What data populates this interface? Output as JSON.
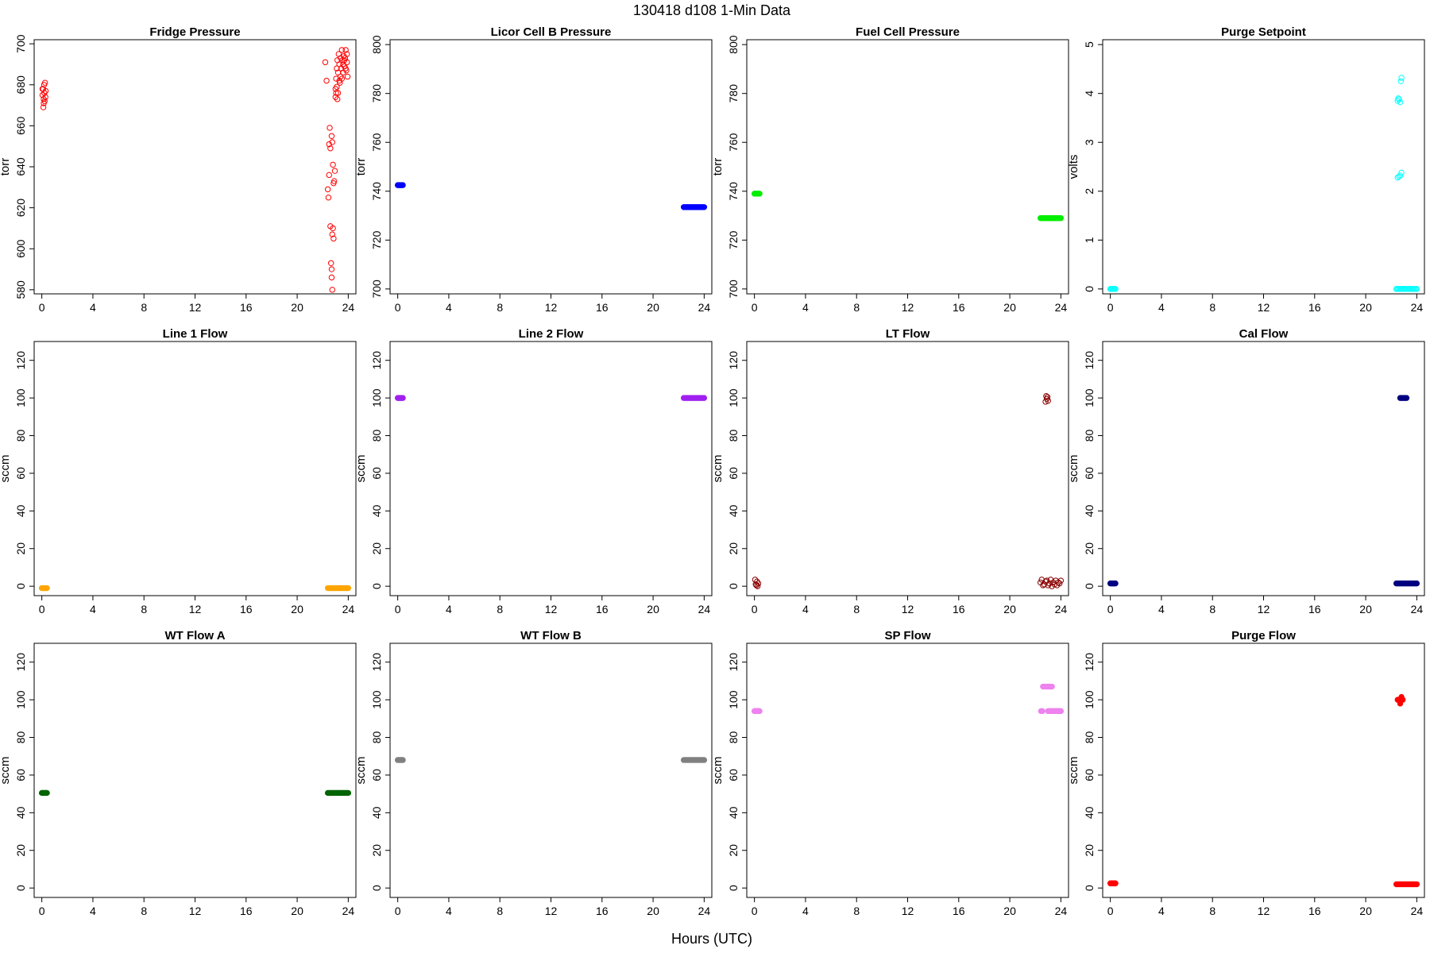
{
  "page_title": "130418   d108   1-Min Data",
  "x_axis_label": "Hours (UTC)",
  "chart_data": [
    {
      "type": "scatter",
      "title": "Fridge Pressure",
      "ylabel": "torr",
      "xlabel": "",
      "color": "#ff0000",
      "filled": false,
      "xlim": [
        0,
        24
      ],
      "ylim": [
        578,
        702
      ],
      "xticks": [
        0,
        4,
        8,
        12,
        16,
        20,
        24
      ],
      "yticks": [
        580,
        600,
        620,
        640,
        660,
        680,
        700
      ],
      "points": [
        [
          0.05,
          675
        ],
        [
          0.1,
          678
        ],
        [
          0.12,
          669
        ],
        [
          0.15,
          673
        ],
        [
          0.18,
          680
        ],
        [
          0.2,
          676
        ],
        [
          0.22,
          672
        ],
        [
          0.25,
          681
        ],
        [
          0.28,
          674
        ],
        [
          0.3,
          677
        ],
        [
          0.05,
          678
        ],
        [
          0.15,
          671
        ],
        [
          22.2,
          691
        ],
        [
          22.3,
          682
        ],
        [
          22.4,
          629
        ],
        [
          22.45,
          625
        ],
        [
          22.5,
          651
        ],
        [
          22.55,
          659
        ],
        [
          22.5,
          636
        ],
        [
          22.6,
          649
        ],
        [
          22.6,
          611
        ],
        [
          22.65,
          593
        ],
        [
          22.7,
          590
        ],
        [
          22.75,
          580
        ],
        [
          22.7,
          586
        ],
        [
          22.7,
          655
        ],
        [
          22.75,
          652
        ],
        [
          22.75,
          607
        ],
        [
          22.8,
          610
        ],
        [
          22.8,
          641
        ],
        [
          22.85,
          605
        ],
        [
          22.9,
          633
        ],
        [
          22.95,
          638
        ],
        [
          22.85,
          632
        ],
        [
          23.0,
          674
        ],
        [
          23.0,
          678
        ],
        [
          23.05,
          683
        ],
        [
          23.1,
          688
        ],
        [
          23.15,
          692
        ],
        [
          23.2,
          686
        ],
        [
          23.25,
          695
        ],
        [
          23.3,
          690
        ],
        [
          23.35,
          681
        ],
        [
          23.4,
          693
        ],
        [
          23.45,
          688
        ],
        [
          23.5,
          697
        ],
        [
          23.5,
          683
        ],
        [
          23.55,
          692
        ],
        [
          23.6,
          686
        ],
        [
          23.65,
          694
        ],
        [
          23.7,
          689
        ],
        [
          23.75,
          693
        ],
        [
          23.8,
          697
        ],
        [
          23.85,
          687
        ],
        [
          23.9,
          691
        ],
        [
          23.95,
          684
        ],
        [
          23.2,
          676
        ],
        [
          23.1,
          679
        ],
        [
          23.3,
          682
        ],
        [
          23.4,
          684
        ],
        [
          23.6,
          690
        ],
        [
          23.7,
          692
        ],
        [
          23.8,
          688
        ],
        [
          23.9,
          695
        ],
        [
          23.15,
          673
        ],
        [
          23.05,
          676
        ]
      ]
    },
    {
      "type": "scatter",
      "title": "Licor Cell B Pressure",
      "ylabel": "torr",
      "xlabel": "",
      "color": "#0000ff",
      "filled": true,
      "xlim": [
        0,
        24
      ],
      "ylim": [
        698,
        802
      ],
      "xticks": [
        0,
        4,
        8,
        12,
        16,
        20,
        24
      ],
      "yticks": [
        700,
        720,
        740,
        760,
        780,
        800
      ],
      "segments": [
        {
          "x0": 0.0,
          "x1": 0.4,
          "y": 742.5,
          "n": 8
        },
        {
          "x0": 22.4,
          "x1": 24.0,
          "y": 733.5,
          "n": 22
        }
      ]
    },
    {
      "type": "scatter",
      "title": "Fuel Cell Pressure",
      "ylabel": "torr",
      "xlabel": "",
      "color": "#00ee00",
      "filled": true,
      "xlim": [
        0,
        24
      ],
      "ylim": [
        698,
        802
      ],
      "xticks": [
        0,
        4,
        8,
        12,
        16,
        20,
        24
      ],
      "yticks": [
        700,
        720,
        740,
        760,
        780,
        800
      ],
      "segments": [
        {
          "x0": 0.0,
          "x1": 0.4,
          "y": 739.0,
          "n": 8
        },
        {
          "x0": 22.4,
          "x1": 24.0,
          "y": 729.0,
          "n": 22
        }
      ]
    },
    {
      "type": "scatter",
      "title": "Purge Setpoint",
      "ylabel": "volts",
      "xlabel": "",
      "color": "#00ffff",
      "filled": false,
      "xlim": [
        0,
        24
      ],
      "ylim": [
        -0.1,
        5.1
      ],
      "xticks": [
        0,
        4,
        8,
        12,
        16,
        20,
        24
      ],
      "yticks": [
        0,
        1,
        2,
        3,
        4,
        5
      ],
      "points": [
        [
          22.5,
          3.85
        ],
        [
          22.6,
          3.88
        ],
        [
          22.7,
          3.82
        ],
        [
          22.55,
          3.9
        ],
        [
          22.75,
          4.25
        ],
        [
          22.8,
          4.32
        ],
        [
          22.5,
          2.28
        ],
        [
          22.6,
          2.3
        ],
        [
          22.7,
          2.32
        ],
        [
          22.8,
          2.38
        ]
      ],
      "segments": [
        {
          "x0": 0.0,
          "x1": 0.4,
          "y": 0.0,
          "n": 8
        },
        {
          "x0": 22.4,
          "x1": 24.0,
          "y": 0.0,
          "n": 22
        }
      ]
    },
    {
      "type": "scatter",
      "title": "Line 1 Flow",
      "ylabel": "sccm",
      "xlabel": "",
      "color": "#ffa500",
      "filled": true,
      "xlim": [
        0,
        24
      ],
      "ylim": [
        -5,
        130
      ],
      "xticks": [
        0,
        4,
        8,
        12,
        16,
        20,
        24
      ],
      "yticks": [
        0,
        20,
        40,
        60,
        80,
        100,
        120
      ],
      "segments": [
        {
          "x0": 0.0,
          "x1": 0.4,
          "y": -1.0,
          "n": 8
        },
        {
          "x0": 22.4,
          "x1": 24.0,
          "y": -1.0,
          "n": 22
        }
      ]
    },
    {
      "type": "scatter",
      "title": "Line 2 Flow",
      "ylabel": "sccm",
      "xlabel": "",
      "color": "#a020f0",
      "filled": true,
      "xlim": [
        0,
        24
      ],
      "ylim": [
        -5,
        130
      ],
      "xticks": [
        0,
        4,
        8,
        12,
        16,
        20,
        24
      ],
      "yticks": [
        0,
        20,
        40,
        60,
        80,
        100,
        120
      ],
      "segments": [
        {
          "x0": 0.0,
          "x1": 0.4,
          "y": 100.0,
          "n": 8
        },
        {
          "x0": 22.4,
          "x1": 24.0,
          "y": 100.0,
          "n": 22
        }
      ]
    },
    {
      "type": "scatter",
      "title": "LT Flow",
      "ylabel": "sccm",
      "xlabel": "",
      "color": "#8b0000",
      "filled": false,
      "xlim": [
        0,
        24
      ],
      "ylim": [
        -5,
        130
      ],
      "xticks": [
        0,
        4,
        8,
        12,
        16,
        20,
        24
      ],
      "yticks": [
        0,
        20,
        40,
        60,
        80,
        100,
        120
      ],
      "points": [
        [
          0.05,
          3.5
        ],
        [
          0.1,
          1.0
        ],
        [
          0.15,
          0.5
        ],
        [
          0.2,
          2.5
        ],
        [
          0.25,
          0.0
        ],
        [
          0.3,
          1.5
        ],
        [
          22.4,
          2.0
        ],
        [
          22.5,
          3.5
        ],
        [
          22.6,
          0.5
        ],
        [
          22.7,
          1.0
        ],
        [
          22.8,
          2.5
        ],
        [
          22.9,
          3.0
        ],
        [
          23.0,
          0.5
        ],
        [
          23.1,
          1.5
        ],
        [
          23.2,
          3.5
        ],
        [
          23.3,
          0.0
        ],
        [
          23.4,
          2.0
        ],
        [
          23.5,
          1.0
        ],
        [
          23.6,
          3.0
        ],
        [
          23.7,
          0.5
        ],
        [
          23.8,
          2.0
        ],
        [
          23.9,
          1.5
        ],
        [
          24.0,
          3.0
        ],
        [
          22.8,
          98.0
        ],
        [
          22.85,
          101.0
        ],
        [
          22.9,
          99.5
        ],
        [
          22.95,
          100.5
        ],
        [
          23.0,
          98.5
        ]
      ]
    },
    {
      "type": "scatter",
      "title": "Cal Flow",
      "ylabel": "sccm",
      "xlabel": "",
      "color": "#000080",
      "filled": true,
      "xlim": [
        0,
        24
      ],
      "ylim": [
        -5,
        130
      ],
      "xticks": [
        0,
        4,
        8,
        12,
        16,
        20,
        24
      ],
      "yticks": [
        0,
        20,
        40,
        60,
        80,
        100,
        120
      ],
      "segments": [
        {
          "x0": 0.0,
          "x1": 0.4,
          "y": 1.5,
          "n": 8
        },
        {
          "x0": 22.4,
          "x1": 24.0,
          "y": 1.5,
          "n": 22
        },
        {
          "x0": 22.7,
          "x1": 23.2,
          "y": 100.0,
          "n": 8
        }
      ]
    },
    {
      "type": "scatter",
      "title": "WT Flow A",
      "ylabel": "sccm",
      "xlabel": "",
      "color": "#006400",
      "filled": true,
      "xlim": [
        0,
        24
      ],
      "ylim": [
        -5,
        130
      ],
      "xticks": [
        0,
        4,
        8,
        12,
        16,
        20,
        24
      ],
      "yticks": [
        0,
        20,
        40,
        60,
        80,
        100,
        120
      ],
      "segments": [
        {
          "x0": 0.0,
          "x1": 0.4,
          "y": 50.5,
          "n": 8
        },
        {
          "x0": 22.4,
          "x1": 24.0,
          "y": 50.5,
          "n": 22
        }
      ]
    },
    {
      "type": "scatter",
      "title": "WT Flow B",
      "ylabel": "sccm",
      "xlabel": "",
      "color": "#808080",
      "filled": true,
      "xlim": [
        0,
        24
      ],
      "ylim": [
        -5,
        130
      ],
      "xticks": [
        0,
        4,
        8,
        12,
        16,
        20,
        24
      ],
      "yticks": [
        0,
        20,
        40,
        60,
        80,
        100,
        120
      ],
      "segments": [
        {
          "x0": 0.0,
          "x1": 0.4,
          "y": 68.0,
          "n": 8
        },
        {
          "x0": 22.4,
          "x1": 24.0,
          "y": 68.0,
          "n": 22
        }
      ]
    },
    {
      "type": "scatter",
      "title": "SP Flow",
      "ylabel": "sccm",
      "xlabel": "",
      "color": "#ee82ee",
      "filled": true,
      "xlim": [
        0,
        24
      ],
      "ylim": [
        -5,
        130
      ],
      "xticks": [
        0,
        4,
        8,
        12,
        16,
        20,
        24
      ],
      "yticks": [
        0,
        20,
        40,
        60,
        80,
        100,
        120
      ],
      "segments": [
        {
          "x0": 0.0,
          "x1": 0.4,
          "y": 94.0,
          "n": 8
        },
        {
          "x0": 23.0,
          "x1": 24.0,
          "y": 94.0,
          "n": 14
        },
        {
          "x0": 22.6,
          "x1": 23.3,
          "y": 107.0,
          "n": 10
        }
      ],
      "points": [
        [
          22.45,
          94.0
        ],
        [
          22.55,
          94.0
        ]
      ]
    },
    {
      "type": "scatter",
      "title": "Purge Flow",
      "ylabel": "sccm",
      "xlabel": "",
      "color": "#ff0000",
      "filled": true,
      "xlim": [
        0,
        24
      ],
      "ylim": [
        -5,
        130
      ],
      "xticks": [
        0,
        4,
        8,
        12,
        16,
        20,
        24
      ],
      "yticks": [
        0,
        20,
        40,
        60,
        80,
        100,
        120
      ],
      "segments": [
        {
          "x0": 0.0,
          "x1": 0.4,
          "y": 2.5,
          "n": 8
        },
        {
          "x0": 22.4,
          "x1": 24.0,
          "y": 2.0,
          "n": 22
        },
        {
          "x0": 22.5,
          "x1": 22.9,
          "y": 100.0,
          "n": 6
        }
      ],
      "points": [
        [
          22.7,
          98.0
        ],
        [
          22.8,
          101.5
        ]
      ]
    }
  ]
}
